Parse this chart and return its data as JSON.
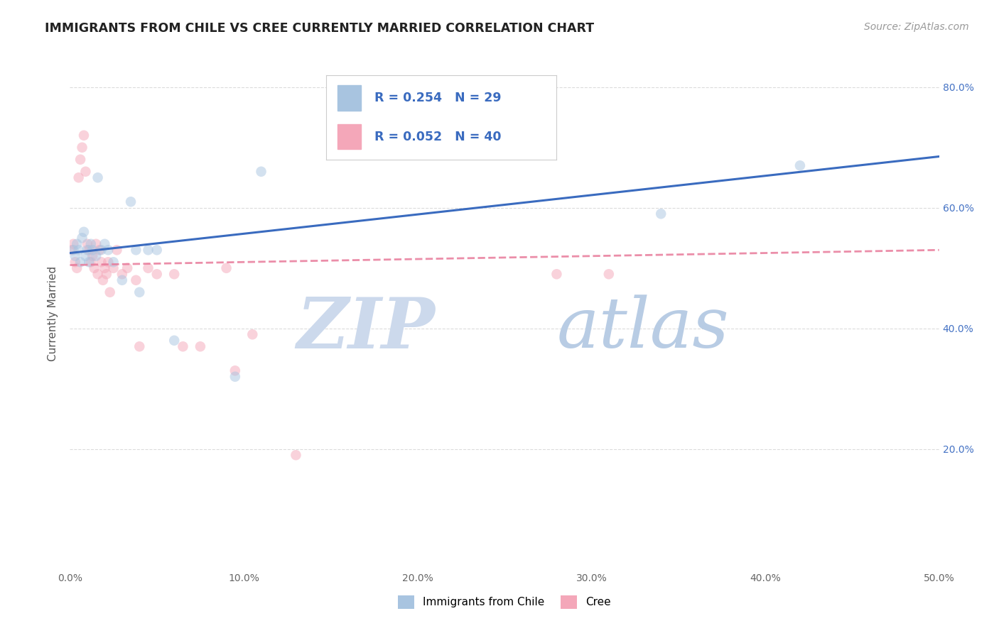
{
  "title": "IMMIGRANTS FROM CHILE VS CREE CURRENTLY MARRIED CORRELATION CHART",
  "source": "Source: ZipAtlas.com",
  "ylabel": "Currently Married",
  "xlim": [
    0.0,
    0.5
  ],
  "ylim": [
    0.0,
    0.85
  ],
  "ytick_labels_right": [
    "20.0%",
    "40.0%",
    "60.0%",
    "80.0%"
  ],
  "ytick_vals_right": [
    0.2,
    0.4,
    0.6,
    0.8
  ],
  "xtick_positions": [
    0.0,
    0.1,
    0.2,
    0.3,
    0.4,
    0.5
  ],
  "xtick_labels": [
    "0.0%",
    "10.0%",
    "20.0%",
    "30.0%",
    "40.0%",
    "50.0%"
  ],
  "chile_color": "#a8c4e0",
  "cree_color": "#f4a7b9",
  "chile_line_color": "#3a6bbf",
  "cree_line_color": "#e87a9a",
  "chile_R": 0.254,
  "chile_N": 29,
  "cree_R": 0.052,
  "cree_N": 40,
  "chile_x": [
    0.002,
    0.003,
    0.004,
    0.005,
    0.006,
    0.007,
    0.008,
    0.009,
    0.01,
    0.011,
    0.012,
    0.013,
    0.015,
    0.016,
    0.018,
    0.02,
    0.022,
    0.025,
    0.03,
    0.035,
    0.038,
    0.04,
    0.045,
    0.05,
    0.06,
    0.095,
    0.11,
    0.34,
    0.42
  ],
  "chile_y": [
    0.53,
    0.52,
    0.54,
    0.53,
    0.51,
    0.55,
    0.56,
    0.52,
    0.53,
    0.51,
    0.54,
    0.53,
    0.52,
    0.65,
    0.53,
    0.54,
    0.53,
    0.51,
    0.48,
    0.61,
    0.53,
    0.46,
    0.53,
    0.53,
    0.38,
    0.32,
    0.66,
    0.59,
    0.67
  ],
  "cree_x": [
    0.001,
    0.002,
    0.003,
    0.004,
    0.005,
    0.006,
    0.007,
    0.008,
    0.009,
    0.01,
    0.011,
    0.012,
    0.013,
    0.014,
    0.015,
    0.016,
    0.017,
    0.018,
    0.019,
    0.02,
    0.021,
    0.022,
    0.023,
    0.025,
    0.027,
    0.03,
    0.033,
    0.038,
    0.04,
    0.045,
    0.05,
    0.06,
    0.065,
    0.075,
    0.09,
    0.095,
    0.105,
    0.13,
    0.28,
    0.31
  ],
  "cree_y": [
    0.53,
    0.54,
    0.51,
    0.5,
    0.65,
    0.68,
    0.7,
    0.72,
    0.66,
    0.54,
    0.53,
    0.51,
    0.52,
    0.5,
    0.54,
    0.49,
    0.53,
    0.51,
    0.48,
    0.5,
    0.49,
    0.51,
    0.46,
    0.5,
    0.53,
    0.49,
    0.5,
    0.48,
    0.37,
    0.5,
    0.49,
    0.49,
    0.37,
    0.37,
    0.5,
    0.33,
    0.39,
    0.19,
    0.49,
    0.49
  ],
  "background_color": "#ffffff",
  "grid_color": "#d8d8d8",
  "marker_size": 110,
  "marker_alpha": 0.5,
  "watermark_zip": "ZIP",
  "watermark_atlas": "atlas",
  "watermark_color_zip": "#ccd9ec",
  "watermark_color_atlas": "#b8cce4",
  "legend_border_color": "#cccccc"
}
